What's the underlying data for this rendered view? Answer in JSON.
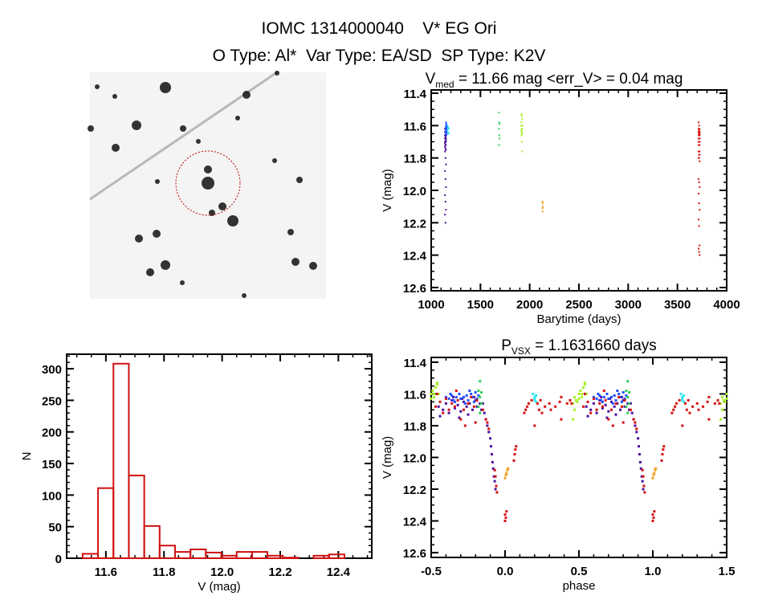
{
  "header": {
    "line1": "IOMC 1314000040    V* EG Ori",
    "line2": "O Type: Al*  Var Type: EA/SD  SP Type: K2V"
  },
  "colors": {
    "histogram": "#d01010",
    "purple": "#4b0f9e",
    "blue": "#1e4cff",
    "cyan": "#2ee6f2",
    "green": "#2fcf5c",
    "yellowgreen": "#a6f022",
    "orange": "#f0a020",
    "red": "#d81010",
    "finder_circle": "#c00000"
  },
  "chart_data": [
    {
      "id": "image",
      "type": "image",
      "description_icon": "finder-chart-image"
    },
    {
      "id": "lightcurve",
      "type": "scatter",
      "title_main": "V",
      "title_sub": "med",
      "title_rest": " = 11.66 mag <err_V> = 0.04 mag",
      "xlabel": "Barytime (days)",
      "ylabel": "V (mag)",
      "xlim": [
        1000,
        4000
      ],
      "ylim": [
        11.38,
        12.62
      ],
      "y_inverted": true,
      "xticks": [
        1000,
        1500,
        2000,
        2500,
        3000,
        3500,
        4000
      ],
      "yticks": [
        11.4,
        11.6,
        11.8,
        12.0,
        12.2,
        12.4,
        12.6
      ]
    },
    {
      "id": "histogram",
      "type": "bar",
      "xlabel": "V (mag)",
      "ylabel": "N",
      "xlim": [
        11.465,
        12.515
      ],
      "ylim": [
        0,
        323
      ],
      "xticks": [
        11.6,
        11.8,
        12.0,
        12.2,
        12.4
      ],
      "yticks": [
        0,
        50,
        100,
        150,
        200,
        250,
        300
      ],
      "bin_start": 11.52,
      "bin_width": 0.053,
      "counts": [
        7,
        111,
        308,
        131,
        51,
        20,
        10,
        14,
        9,
        4,
        10,
        10,
        4,
        1,
        0,
        4,
        6
      ]
    },
    {
      "id": "phased",
      "type": "scatter",
      "title_main": "P",
      "title_sub": "VSX",
      "title_rest": " = 1.1631660 days",
      "xlabel": "phase",
      "ylabel": "V (mag)",
      "xlim": [
        -0.5,
        1.5
      ],
      "ylim": [
        11.37,
        12.63
      ],
      "y_inverted": true,
      "xticks": [
        -0.5,
        0.0,
        0.5,
        1.0,
        1.5
      ],
      "yticks": [
        11.4,
        11.6,
        11.8,
        12.0,
        12.2,
        12.4,
        12.6
      ],
      "period_days": 1.163166
    }
  ],
  "series": [
    {
      "name": "purple",
      "time_range": [
        1140,
        1150
      ],
      "points": [
        [
          -0.45,
          11.68
        ],
        [
          -0.42,
          11.7
        ],
        [
          -0.4,
          11.66
        ],
        [
          -0.38,
          11.72
        ],
        [
          -0.36,
          11.64
        ],
        [
          -0.34,
          11.69
        ],
        [
          -0.32,
          11.67
        ],
        [
          -0.3,
          11.71
        ],
        [
          -0.28,
          11.65
        ],
        [
          -0.26,
          11.68
        ],
        [
          -0.24,
          11.66
        ],
        [
          -0.22,
          11.7
        ],
        [
          -0.2,
          11.64
        ],
        [
          -0.19,
          11.68
        ],
        [
          -0.17,
          11.66
        ],
        [
          -0.16,
          11.7
        ],
        [
          -0.14,
          11.72
        ],
        [
          -0.13,
          11.76
        ],
        [
          -0.12,
          11.8
        ],
        [
          -0.11,
          11.84
        ],
        [
          -0.1,
          11.88
        ],
        [
          -0.095,
          11.93
        ],
        [
          -0.09,
          11.98
        ],
        [
          -0.085,
          12.03
        ],
        [
          -0.08,
          12.07
        ],
        [
          -0.075,
          12.12
        ],
        [
          -0.07,
          12.15
        ],
        [
          -0.065,
          12.2
        ],
        [
          -0.44,
          11.74
        ],
        [
          -0.31,
          11.75
        ],
        [
          -0.25,
          11.73
        ],
        [
          -0.35,
          11.62
        ],
        [
          -0.29,
          11.63
        ],
        [
          -0.21,
          11.62
        ],
        [
          -0.15,
          11.66
        ]
      ]
    },
    {
      "name": "blue",
      "time_range": [
        1150,
        1158
      ],
      "points": [
        [
          -0.4,
          11.62
        ],
        [
          -0.38,
          11.63
        ],
        [
          -0.36,
          11.61
        ],
        [
          -0.35,
          11.64
        ],
        [
          -0.33,
          11.62
        ],
        [
          -0.31,
          11.6
        ],
        [
          -0.3,
          11.63
        ],
        [
          -0.28,
          11.62
        ],
        [
          -0.26,
          11.61
        ],
        [
          -0.25,
          11.64
        ],
        [
          -0.23,
          11.6
        ],
        [
          -0.22,
          11.62
        ],
        [
          -0.2,
          11.59
        ],
        [
          -0.19,
          11.63
        ],
        [
          -0.18,
          11.61
        ],
        [
          -0.34,
          11.65
        ],
        [
          -0.27,
          11.66
        ],
        [
          -0.21,
          11.65
        ],
        [
          -0.37,
          11.6
        ],
        [
          -0.24,
          11.58
        ]
      ]
    },
    {
      "name": "cyan",
      "time_range": [
        1165,
        1180
      ],
      "points": [
        [
          0.19,
          11.6
        ],
        [
          0.2,
          11.62
        ],
        [
          0.2,
          11.64
        ],
        [
          0.21,
          11.61
        ],
        [
          0.21,
          11.65
        ],
        [
          0.2,
          11.63
        ]
      ]
    },
    {
      "name": "green",
      "time_range": [
        1688,
        1694
      ],
      "points": [
        [
          -0.17,
          11.52
        ],
        [
          -0.18,
          11.58
        ],
        [
          -0.16,
          11.59
        ],
        [
          -0.17,
          11.62
        ],
        [
          -0.16,
          11.66
        ],
        [
          -0.18,
          11.68
        ],
        [
          -0.17,
          11.72
        ]
      ]
    },
    {
      "name": "yellowgreen",
      "time_range": [
        1915,
        1925
      ],
      "points": [
        [
          0.46,
          11.66
        ],
        [
          0.47,
          11.62
        ],
        [
          0.48,
          11.64
        ],
        [
          0.5,
          11.6
        ],
        [
          0.51,
          11.58
        ],
        [
          0.52,
          11.62
        ],
        [
          0.53,
          11.56
        ],
        [
          0.54,
          11.54
        ],
        [
          0.55,
          11.6
        ],
        [
          0.49,
          11.65
        ],
        [
          0.47,
          11.7
        ],
        [
          0.46,
          11.76
        ],
        [
          0.52,
          11.6
        ],
        [
          0.5,
          11.63
        ],
        [
          0.54,
          11.53
        ]
      ]
    },
    {
      "name": "orange",
      "time_range": [
        2130,
        2134
      ],
      "points": [
        [
          0.0,
          12.13
        ],
        [
          0.005,
          12.11
        ],
        [
          0.01,
          12.1
        ],
        [
          0.015,
          12.08
        ],
        [
          0.02,
          12.07
        ]
      ]
    },
    {
      "name": "red",
      "time_range": [
        3715,
        3725
      ],
      "points": [
        [
          -0.47,
          11.68
        ],
        [
          -0.44,
          11.65
        ],
        [
          -0.42,
          11.72
        ],
        [
          -0.4,
          11.63
        ],
        [
          -0.38,
          11.7
        ],
        [
          -0.36,
          11.66
        ],
        [
          -0.34,
          11.68
        ],
        [
          -0.32,
          11.64
        ],
        [
          -0.3,
          11.76
        ],
        [
          -0.28,
          11.7
        ],
        [
          -0.27,
          11.8
        ],
        [
          -0.25,
          11.66
        ],
        [
          -0.23,
          11.62
        ],
        [
          -0.21,
          11.68
        ],
        [
          -0.2,
          11.78
        ],
        [
          -0.19,
          11.64
        ],
        [
          -0.15,
          11.7
        ],
        [
          -0.13,
          11.76
        ],
        [
          -0.12,
          11.78
        ],
        [
          -0.11,
          11.82
        ],
        [
          -0.07,
          12.08
        ],
        [
          -0.065,
          12.12
        ],
        [
          -0.06,
          12.18
        ],
        [
          -0.055,
          12.22
        ],
        [
          0.0,
          12.36
        ],
        [
          0.005,
          12.38
        ],
        [
          0.01,
          12.34
        ],
        [
          0.0,
          12.4
        ],
        [
          0.06,
          12.02
        ],
        [
          0.065,
          11.98
        ],
        [
          0.07,
          11.95
        ],
        [
          0.075,
          11.93
        ],
        [
          0.13,
          11.72
        ],
        [
          0.14,
          11.7
        ],
        [
          0.15,
          11.68
        ],
        [
          0.16,
          11.66
        ],
        [
          0.18,
          11.64
        ],
        [
          0.2,
          11.8
        ],
        [
          0.22,
          11.66
        ],
        [
          0.23,
          11.7
        ],
        [
          0.24,
          11.64
        ],
        [
          0.25,
          11.72
        ],
        [
          0.27,
          11.68
        ],
        [
          0.3,
          11.66
        ],
        [
          0.31,
          11.7
        ],
        [
          0.34,
          11.68
        ],
        [
          0.37,
          11.65
        ],
        [
          0.38,
          11.62
        ],
        [
          0.38,
          11.76
        ],
        [
          0.42,
          11.66
        ],
        [
          0.44,
          11.64
        ],
        [
          0.45,
          11.66
        ],
        [
          -0.46,
          11.6
        ],
        [
          -0.33,
          11.58
        ]
      ]
    }
  ]
}
